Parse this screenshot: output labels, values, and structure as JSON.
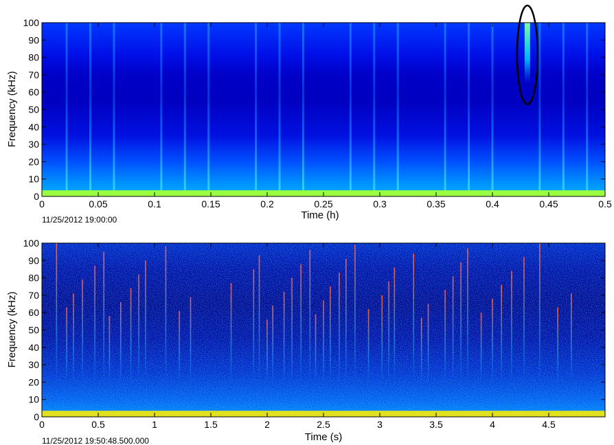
{
  "chart_data": [
    {
      "type": "heatmap",
      "xlabel": "Time (h)",
      "ylabel": "Frequency (kHz)",
      "start_label": "11/25/2012 19:00:00",
      "xlim": [
        0,
        0.5
      ],
      "ylim": [
        0,
        100
      ],
      "xticks": [
        "0",
        "0.05",
        "0.1",
        "0.15",
        "0.2",
        "0.25",
        "0.3",
        "0.35",
        "0.4",
        "0.45",
        "0.5"
      ],
      "yticks": [
        "0",
        "10",
        "20",
        "30",
        "40",
        "50",
        "60",
        "70",
        "80",
        "90",
        "100"
      ],
      "pulse_times": [
        0.022,
        0.043,
        0.064,
        0.106,
        0.127,
        0.148,
        0.19,
        0.211,
        0.232,
        0.274,
        0.295,
        0.316,
        0.358,
        0.379,
        0.4,
        0.442,
        0.463,
        0.484
      ],
      "highlight": {
        "time": 0.431,
        "freq_range": [
          55,
          100
        ],
        "shape": "ellipse"
      },
      "colormap": [
        "#00008f",
        "#0000ff",
        "#0080ff",
        "#00ffff",
        "#80ff80",
        "#ffff00",
        "#ff8000",
        "#ff0000",
        "#800000"
      ]
    },
    {
      "type": "heatmap",
      "xlabel": "Time (s)",
      "ylabel": "Frequency (kHz)",
      "start_label": "11/25/2012 19:50:48.500.000",
      "xlim": [
        0,
        5
      ],
      "ylim": [
        0,
        100
      ],
      "xticks": [
        "0",
        "0.5",
        "1",
        "1.5",
        "2",
        "2.5",
        "3",
        "3.5",
        "4",
        "4.5"
      ],
      "yticks": [
        "0",
        "10",
        "20",
        "30",
        "40",
        "50",
        "60",
        "70",
        "80",
        "90",
        "100"
      ],
      "click_times": [
        0.13,
        0.22,
        0.28,
        0.36,
        0.47,
        0.55,
        0.6,
        0.7,
        0.79,
        0.86,
        0.92,
        1.1,
        1.22,
        1.32,
        1.68,
        1.88,
        1.93,
        2.0,
        2.05,
        2.15,
        2.22,
        2.3,
        2.38,
        2.43,
        2.5,
        2.56,
        2.64,
        2.7,
        2.78,
        2.9,
        3.02,
        3.08,
        3.13,
        3.3,
        3.37,
        3.43,
        3.58,
        3.65,
        3.72,
        3.78,
        3.9,
        4.0,
        4.08,
        4.17,
        4.28,
        4.42,
        4.58,
        4.7
      ],
      "colormap": [
        "#00008f",
        "#0000ff",
        "#0080ff",
        "#00ffff",
        "#80ff80",
        "#ffff00",
        "#ff8000",
        "#ff0000",
        "#800000"
      ]
    }
  ]
}
